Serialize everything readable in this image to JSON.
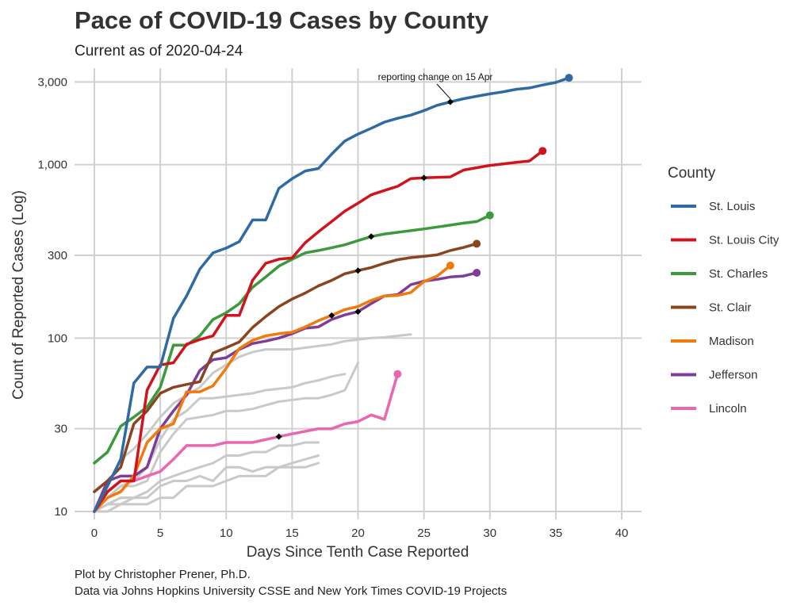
{
  "page": {
    "title": "Pace of COVID-19 Cases by County",
    "subtitle": "Current as of 2020-04-24",
    "caption_line1": "Plot by Christopher Prener, Ph.D.",
    "caption_line2": "Data via Johns Hopkins University CSSE and New York Times COVID-19 Projects"
  },
  "chart_data": {
    "type": "line",
    "title": "Pace of COVID-19 Cases by County",
    "subtitle": "Current as of 2020-04-24",
    "xlabel": "Days Since Tenth Case Reported",
    "ylabel": "Count of Reported Cases (Log)",
    "xlim": [
      -1.5,
      41.5
    ],
    "ylim": [
      9,
      3600
    ],
    "y_scale": "log10",
    "x_ticks": [
      0,
      5,
      10,
      15,
      20,
      25,
      30,
      35,
      40
    ],
    "y_ticks": [
      10,
      30,
      100,
      300,
      1000,
      3000
    ],
    "y_tick_labels": [
      "10",
      "30",
      "100",
      "300",
      "1,000",
      "3,000"
    ],
    "grid": true,
    "legend_title": "County",
    "legend_position": "right",
    "annotation": {
      "text": "reporting change on 15 Apr",
      "series": "St. Louis",
      "x": 27
    },
    "series": [
      {
        "name": "St. Louis",
        "color": "#2f6aa5",
        "x": [
          0,
          1,
          2,
          3,
          4,
          5,
          6,
          7,
          8,
          9,
          10,
          11,
          12,
          13,
          14,
          15,
          16,
          17,
          18,
          19,
          20,
          21,
          22,
          23,
          24,
          25,
          26,
          27,
          28,
          29,
          30,
          31,
          32,
          33,
          34,
          35,
          36
        ],
        "y": [
          10,
          14,
          20,
          55,
          68,
          68,
          130,
          175,
          250,
          310,
          330,
          360,
          480,
          480,
          730,
          830,
          920,
          950,
          1150,
          1370,
          1500,
          1620,
          1760,
          1850,
          1930,
          2050,
          2200,
          2300,
          2400,
          2480,
          2560,
          2630,
          2720,
          2770,
          2880,
          2980,
          3170
        ],
        "marker_x": 27
      },
      {
        "name": "St. Louis City",
        "color": "#d0141e",
        "x": [
          0,
          1,
          2,
          3,
          4,
          5,
          6,
          7,
          8,
          9,
          10,
          11,
          12,
          13,
          14,
          15,
          16,
          17,
          18,
          19,
          20,
          21,
          22,
          23,
          24,
          25,
          26,
          27,
          28,
          29,
          30,
          31,
          32,
          33,
          34
        ],
        "y": [
          10,
          13,
          15,
          15,
          50,
          70,
          72,
          92,
          98,
          103,
          135,
          135,
          215,
          270,
          285,
          290,
          355,
          410,
          470,
          540,
          600,
          670,
          710,
          750,
          830,
          840,
          845,
          850,
          930,
          960,
          990,
          1010,
          1030,
          1050,
          1200
        ],
        "marker_x": 25
      },
      {
        "name": "St. Charles",
        "color": "#3b9a3b",
        "x": [
          0,
          1,
          2,
          3,
          4,
          5,
          6,
          7,
          8,
          9,
          10,
          11,
          12,
          13,
          14,
          15,
          16,
          17,
          18,
          19,
          20,
          21,
          22,
          23,
          24,
          25,
          26,
          27,
          28,
          29,
          30
        ],
        "y": [
          19,
          22,
          31,
          35,
          40,
          52,
          91,
          91,
          103,
          128,
          140,
          158,
          196,
          225,
          260,
          285,
          310,
          320,
          332,
          345,
          365,
          385,
          398,
          407,
          416,
          426,
          437,
          448,
          460,
          470,
          510
        ],
        "marker_x": 21
      },
      {
        "name": "St. Clair",
        "color": "#8a4520",
        "x": [
          0,
          1,
          2,
          3,
          4,
          5,
          6,
          7,
          8,
          9,
          10,
          11,
          12,
          13,
          14,
          15,
          16,
          17,
          18,
          19,
          20,
          21,
          22,
          23,
          24,
          25,
          26,
          27,
          28,
          29
        ],
        "y": [
          13,
          15,
          18,
          32,
          38,
          48,
          52,
          54,
          56,
          82,
          88,
          95,
          115,
          133,
          152,
          168,
          182,
          200,
          215,
          235,
          245,
          255,
          270,
          283,
          291,
          296,
          302,
          320,
          333,
          350
        ],
        "marker_x": 20
      },
      {
        "name": "Madison",
        "color": "#f07a0c",
        "x": [
          0,
          1,
          2,
          3,
          4,
          5,
          6,
          7,
          8,
          9,
          10,
          11,
          12,
          13,
          14,
          15,
          16,
          17,
          18,
          19,
          20,
          21,
          22,
          23,
          24,
          25,
          26,
          27
        ],
        "y": [
          10,
          12,
          13,
          16,
          25,
          30,
          32,
          49,
          49,
          53,
          67,
          87,
          97,
          103,
          106,
          108,
          116,
          126,
          135,
          146,
          152,
          165,
          175,
          176,
          183,
          212,
          228,
          262
        ],
        "marker_x": 18
      },
      {
        "name": "Jefferson",
        "color": "#803d97",
        "x": [
          0,
          1,
          2,
          3,
          4,
          5,
          6,
          7,
          8,
          9,
          10,
          11,
          12,
          13,
          14,
          15,
          16,
          17,
          18,
          19,
          20,
          21,
          22,
          23,
          24,
          25,
          26,
          27,
          28,
          29
        ],
        "y": [
          10,
          15,
          16,
          16,
          18,
          30,
          38,
          47,
          65,
          75,
          77,
          86,
          93,
          96,
          100,
          106,
          114,
          116,
          128,
          136,
          142,
          158,
          175,
          178,
          203,
          213,
          218,
          225,
          228,
          238
        ],
        "marker_x": 20
      },
      {
        "name": "Lincoln",
        "color": "#ea66b0",
        "x": [
          0,
          1,
          2,
          3,
          4,
          5,
          6,
          7,
          8,
          9,
          10,
          11,
          12,
          13,
          14,
          15,
          16,
          17,
          18,
          19,
          20,
          21,
          22,
          23
        ],
        "y": [
          10,
          13,
          15,
          15,
          16,
          17,
          20,
          24,
          24,
          24,
          25,
          25,
          25,
          26,
          27,
          28,
          29,
          30,
          30,
          32,
          33,
          36,
          34,
          62
        ],
        "marker_x": 14
      }
    ],
    "background_series": [
      {
        "x": [
          0,
          1,
          2,
          3,
          4,
          5,
          6,
          7,
          8,
          9,
          10,
          11,
          12,
          13,
          14,
          15,
          16,
          17,
          18,
          19,
          20,
          21,
          22,
          23,
          24
        ],
        "y": [
          10,
          14,
          20,
          23,
          28,
          35,
          42,
          47,
          52,
          63,
          70,
          78,
          83,
          86,
          86,
          86,
          88,
          90,
          92,
          96,
          98,
          100,
          101,
          103,
          105
        ]
      },
      {
        "x": [
          0,
          1,
          2,
          3,
          4,
          5,
          6,
          7,
          8,
          9,
          10,
          11,
          12,
          13,
          14,
          15,
          16,
          17,
          18,
          19
        ],
        "y": [
          10,
          12,
          14,
          15,
          18,
          26,
          34,
          38,
          45,
          45,
          46,
          47,
          48,
          50,
          51,
          52,
          55,
          57,
          60,
          62
        ]
      },
      {
        "x": [
          0,
          1,
          2,
          3,
          4,
          5,
          6,
          7,
          8,
          9,
          10,
          11,
          12,
          13,
          14,
          15,
          16,
          17,
          18,
          19,
          20
        ],
        "y": [
          10,
          12,
          14,
          14,
          15,
          22,
          28,
          34,
          35,
          36,
          38,
          38,
          39,
          41,
          43,
          44,
          45,
          45,
          47,
          50,
          72
        ]
      },
      {
        "x": [
          0,
          1,
          2,
          3,
          4,
          5,
          6,
          7,
          8,
          9,
          10,
          11,
          12,
          13,
          14,
          15,
          16,
          17
        ],
        "y": [
          10,
          11,
          12,
          12,
          13,
          15,
          16,
          17,
          18,
          19,
          21,
          21,
          22,
          22,
          24,
          24,
          25,
          25
        ]
      },
      {
        "x": [
          0,
          1,
          2,
          3,
          4,
          5,
          6,
          7,
          8,
          9,
          10,
          11,
          12,
          13,
          14,
          15,
          16,
          17
        ],
        "y": [
          10,
          11,
          12,
          12,
          12,
          14,
          15,
          15,
          16,
          15,
          18,
          18,
          17,
          18,
          18,
          19,
          20,
          21
        ]
      },
      {
        "x": [
          0,
          1,
          2,
          3,
          4,
          5,
          6,
          7,
          8,
          9,
          10,
          11,
          12,
          13,
          14,
          15,
          16,
          17
        ],
        "y": [
          10,
          10,
          11,
          11,
          11,
          12,
          12,
          14,
          14,
          14,
          15,
          16,
          16,
          16,
          18,
          18,
          18,
          19
        ]
      },
      {
        "x": [
          0,
          1,
          2,
          3
        ],
        "y": [
          10,
          11,
          11,
          12
        ]
      }
    ]
  }
}
